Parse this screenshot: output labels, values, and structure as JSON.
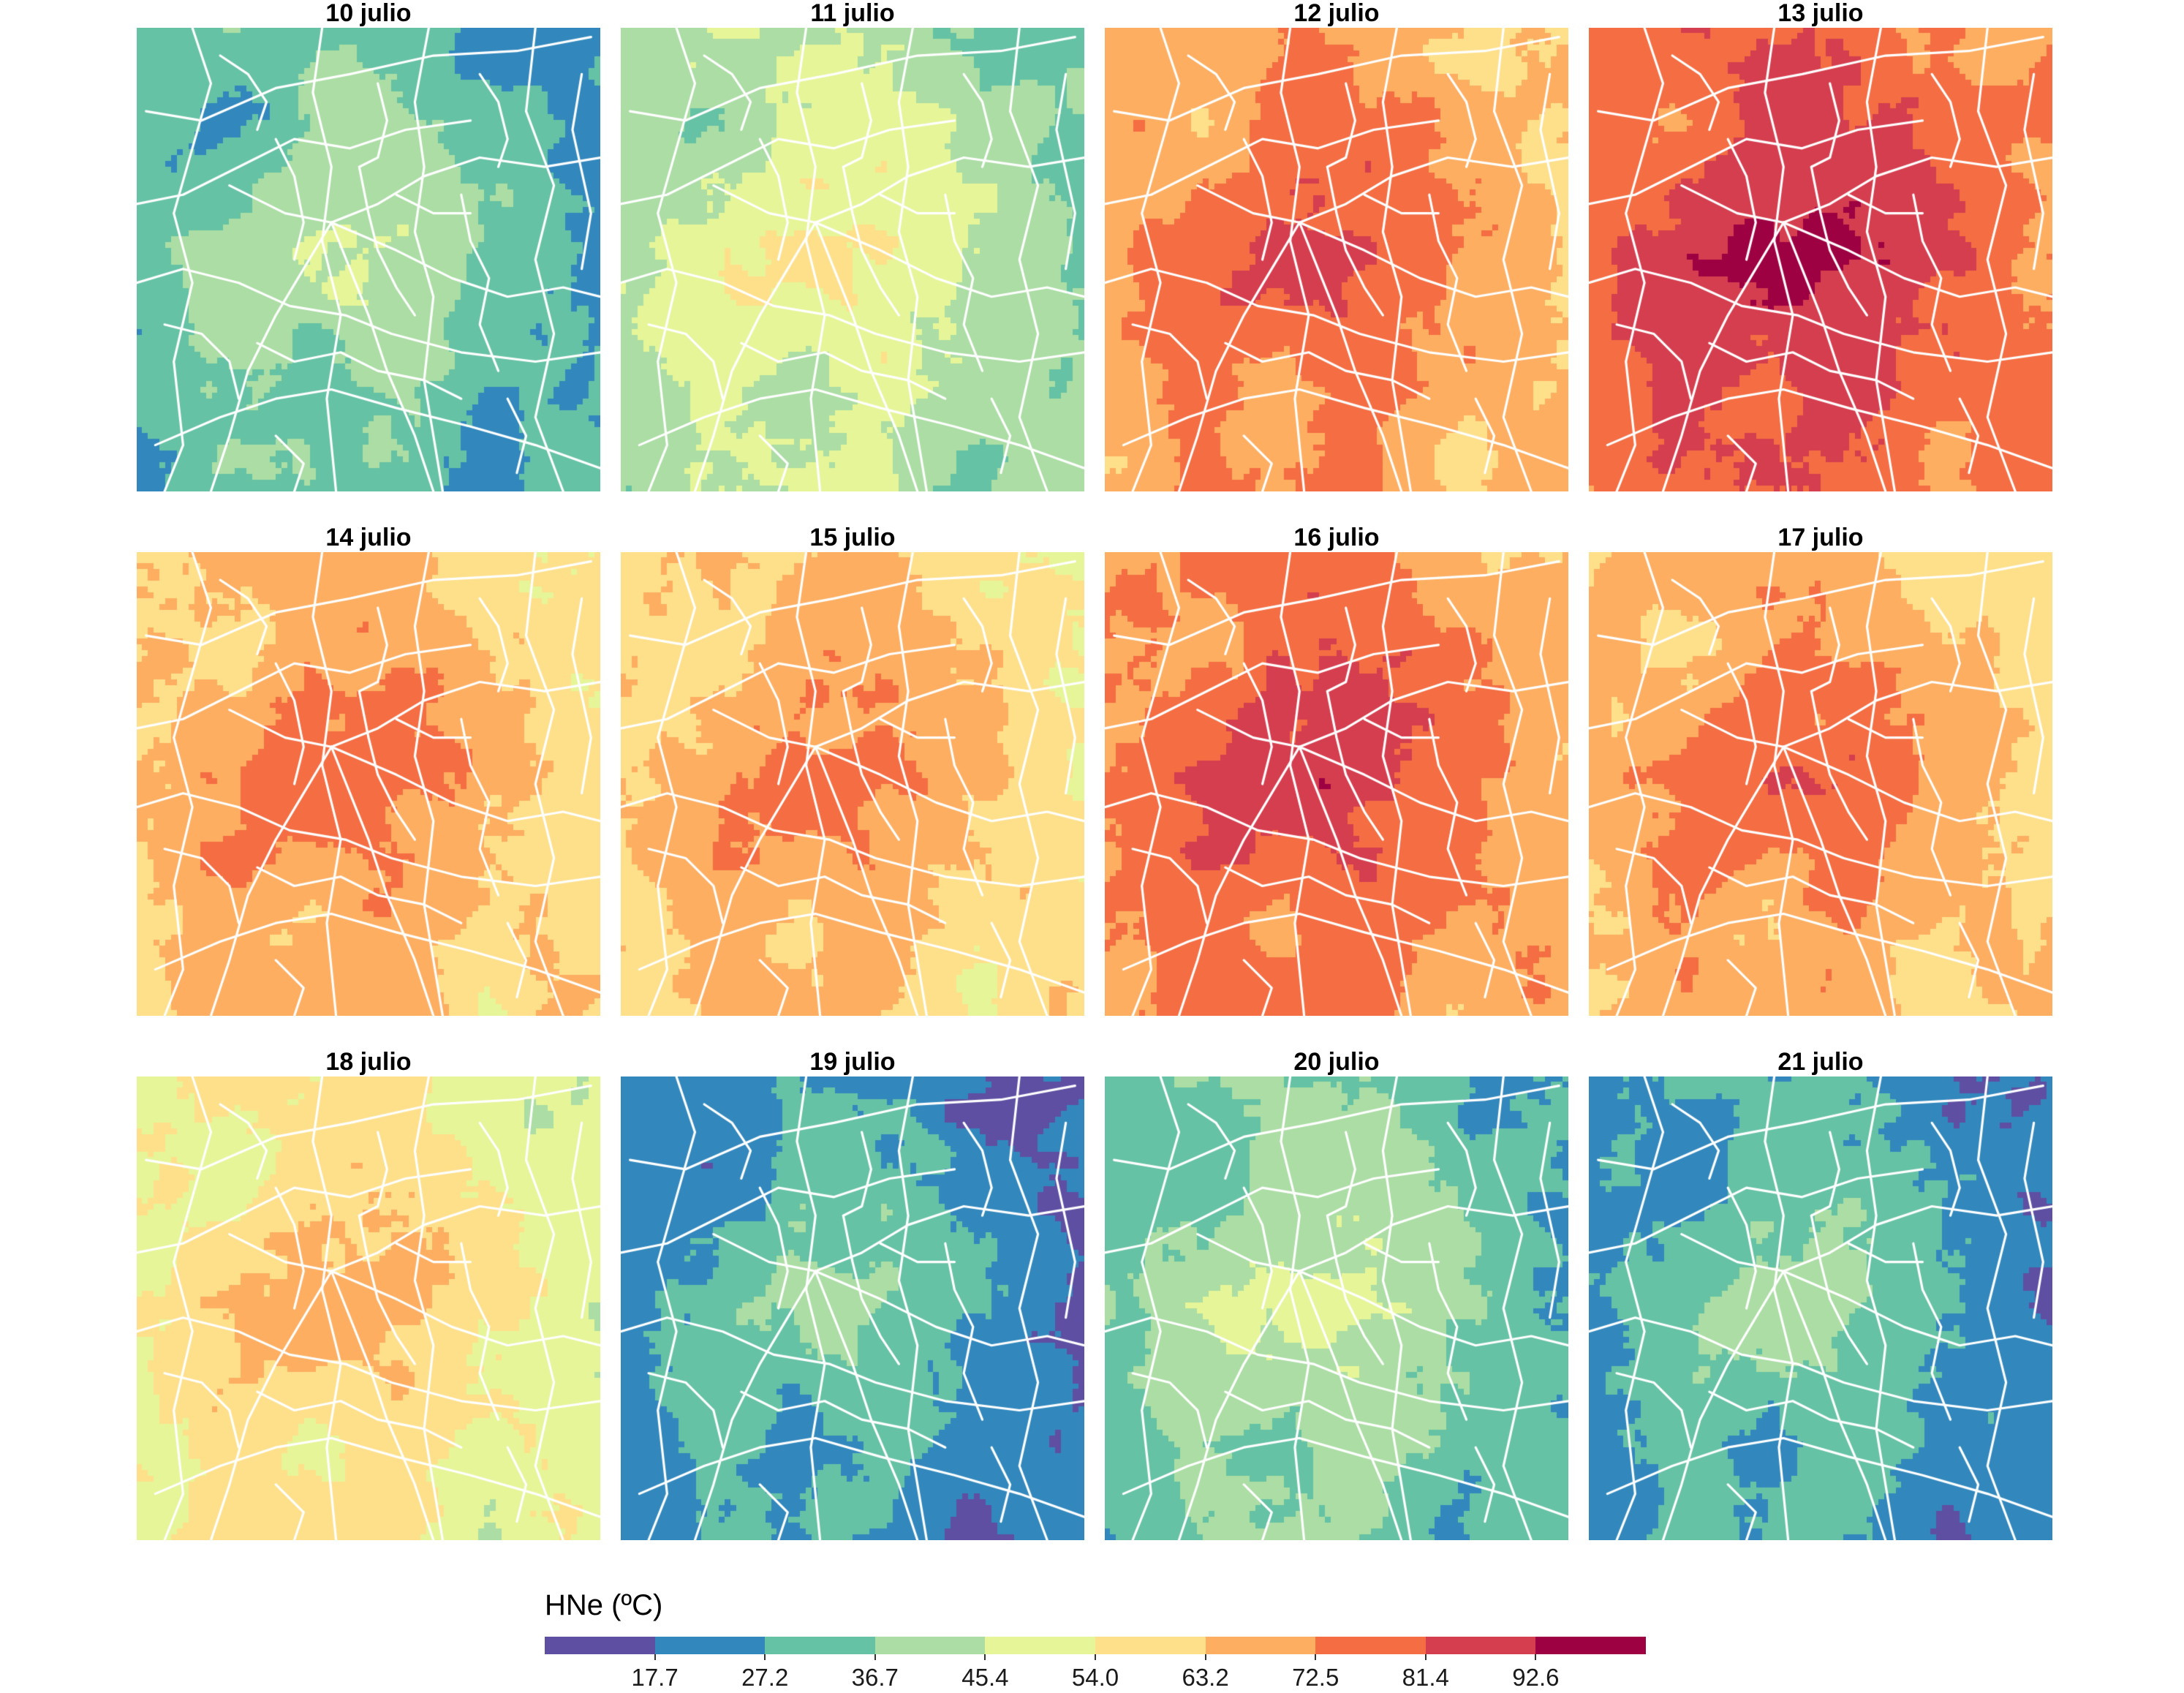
{
  "palette": [
    "#5E4FA2",
    "#3288BD",
    "#66C2A5",
    "#ABDDA4",
    "#E6F598",
    "#FEE08B",
    "#FDAE61",
    "#F46D43",
    "#D53E4F",
    "#9E0142"
  ],
  "panels": [
    {
      "title": "10 julio",
      "level": 2.4
    },
    {
      "title": "11 julio",
      "level": 3.6
    },
    {
      "title": "12 julio",
      "level": 6.6
    },
    {
      "title": "13 julio",
      "level": 7.6
    },
    {
      "title": "14 julio",
      "level": 6.0
    },
    {
      "title": "15 julio",
      "level": 5.8
    },
    {
      "title": "16 julio",
      "level": 7.0
    },
    {
      "title": "17 julio",
      "level": 6.2
    },
    {
      "title": "18 julio",
      "level": 4.9
    },
    {
      "title": "19 julio",
      "level": 1.6
    },
    {
      "title": "20 julio",
      "level": 2.7
    },
    {
      "title": "21 julio",
      "level": 1.8
    }
  ],
  "legend": {
    "title": "HNe (ºC)",
    "ticks": [
      "17.7",
      "27.2",
      "36.7",
      "45.4",
      "54.0",
      "63.2",
      "72.5",
      "81.4",
      "92.6"
    ]
  }
}
